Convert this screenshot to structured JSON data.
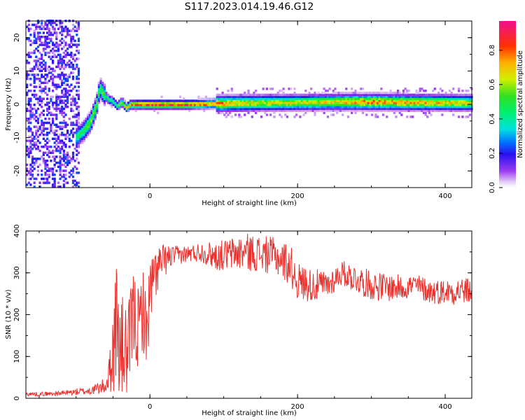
{
  "title": "S117.2023.014.19.46.G12",
  "chart_data": [
    {
      "type": "heatmap",
      "xlabel": "Height of straight line (km)",
      "ylabel": "Frequency (Hz)",
      "xlim": [
        -168,
        436
      ],
      "ylim": [
        -25,
        25
      ],
      "x_ticks": [
        0,
        200,
        400
      ],
      "y_ticks": [
        -20,
        -10,
        0,
        10,
        20
      ],
      "grid": false,
      "colorbar": {
        "label": "Normalized spectral amplitude",
        "range": [
          0,
          0.97
        ],
        "ticks": [
          0.0,
          0.2,
          0.4,
          0.6,
          0.8
        ]
      },
      "ridge": {
        "x": [
          -100,
          -90,
          -80,
          -72,
          -68,
          -62,
          -56,
          -50,
          -44,
          -38,
          -32,
          -26,
          -20,
          -10,
          0,
          50,
          100,
          150,
          200,
          250,
          300,
          350,
          400,
          436
        ],
        "frequency": [
          -10,
          -8,
          -5,
          0,
          5,
          3,
          1.5,
          1,
          -0.5,
          0.8,
          -1,
          0,
          0,
          0,
          0,
          0,
          0.3,
          0.5,
          0.6,
          0.8,
          0.8,
          0.7,
          0.6,
          0.5
        ],
        "amplitude": [
          0.45,
          0.5,
          0.6,
          0.55,
          0.5,
          0.55,
          0.5,
          0.45,
          0.5,
          0.6,
          0.7,
          0.75,
          0.8,
          0.85,
          0.9,
          0.9,
          0.75,
          0.65,
          0.65,
          0.7,
          0.8,
          0.75,
          0.7,
          0.65
        ]
      }
    },
    {
      "type": "line",
      "xlabel": "Height of straight line (km)",
      "ylabel": "SNR (10 * v/v)",
      "xlim": [
        -168,
        436
      ],
      "ylim": [
        0,
        400
      ],
      "x_ticks": [
        0,
        200,
        400
      ],
      "y_ticks": [
        0,
        100,
        200,
        300,
        400
      ],
      "grid": false,
      "series": [
        {
          "color": "#e8302c",
          "x": [
            -168,
            -150,
            -120,
            -100,
            -80,
            -60,
            -55,
            -50,
            -45,
            -40,
            -35,
            -30,
            -25,
            -20,
            -15,
            -10,
            -5,
            0,
            10,
            20,
            30,
            50,
            70,
            90,
            110,
            130,
            150,
            170,
            190,
            200,
            220,
            240,
            260,
            280,
            300,
            320,
            340,
            360,
            380,
            400,
            420,
            436
          ],
          "values": [
            10,
            10,
            12,
            15,
            18,
            30,
            60,
            120,
            200,
            100,
            130,
            90,
            180,
            200,
            150,
            230,
            150,
            250,
            310,
            330,
            340,
            345,
            350,
            340,
            345,
            350,
            345,
            340,
            320,
            280,
            270,
            270,
            300,
            285,
            270,
            265,
            265,
            270,
            255,
            255,
            258,
            255
          ],
          "amplitude": [
            5,
            5,
            6,
            8,
            10,
            20,
            40,
            120,
            150,
            130,
            130,
            110,
            120,
            110,
            110,
            110,
            90,
            90,
            60,
            40,
            25,
            20,
            25,
            35,
            40,
            45,
            45,
            45,
            50,
            45,
            40,
            35,
            30,
            35,
            35,
            35,
            30,
            30,
            30,
            30,
            35,
            30
          ]
        }
      ]
    }
  ]
}
